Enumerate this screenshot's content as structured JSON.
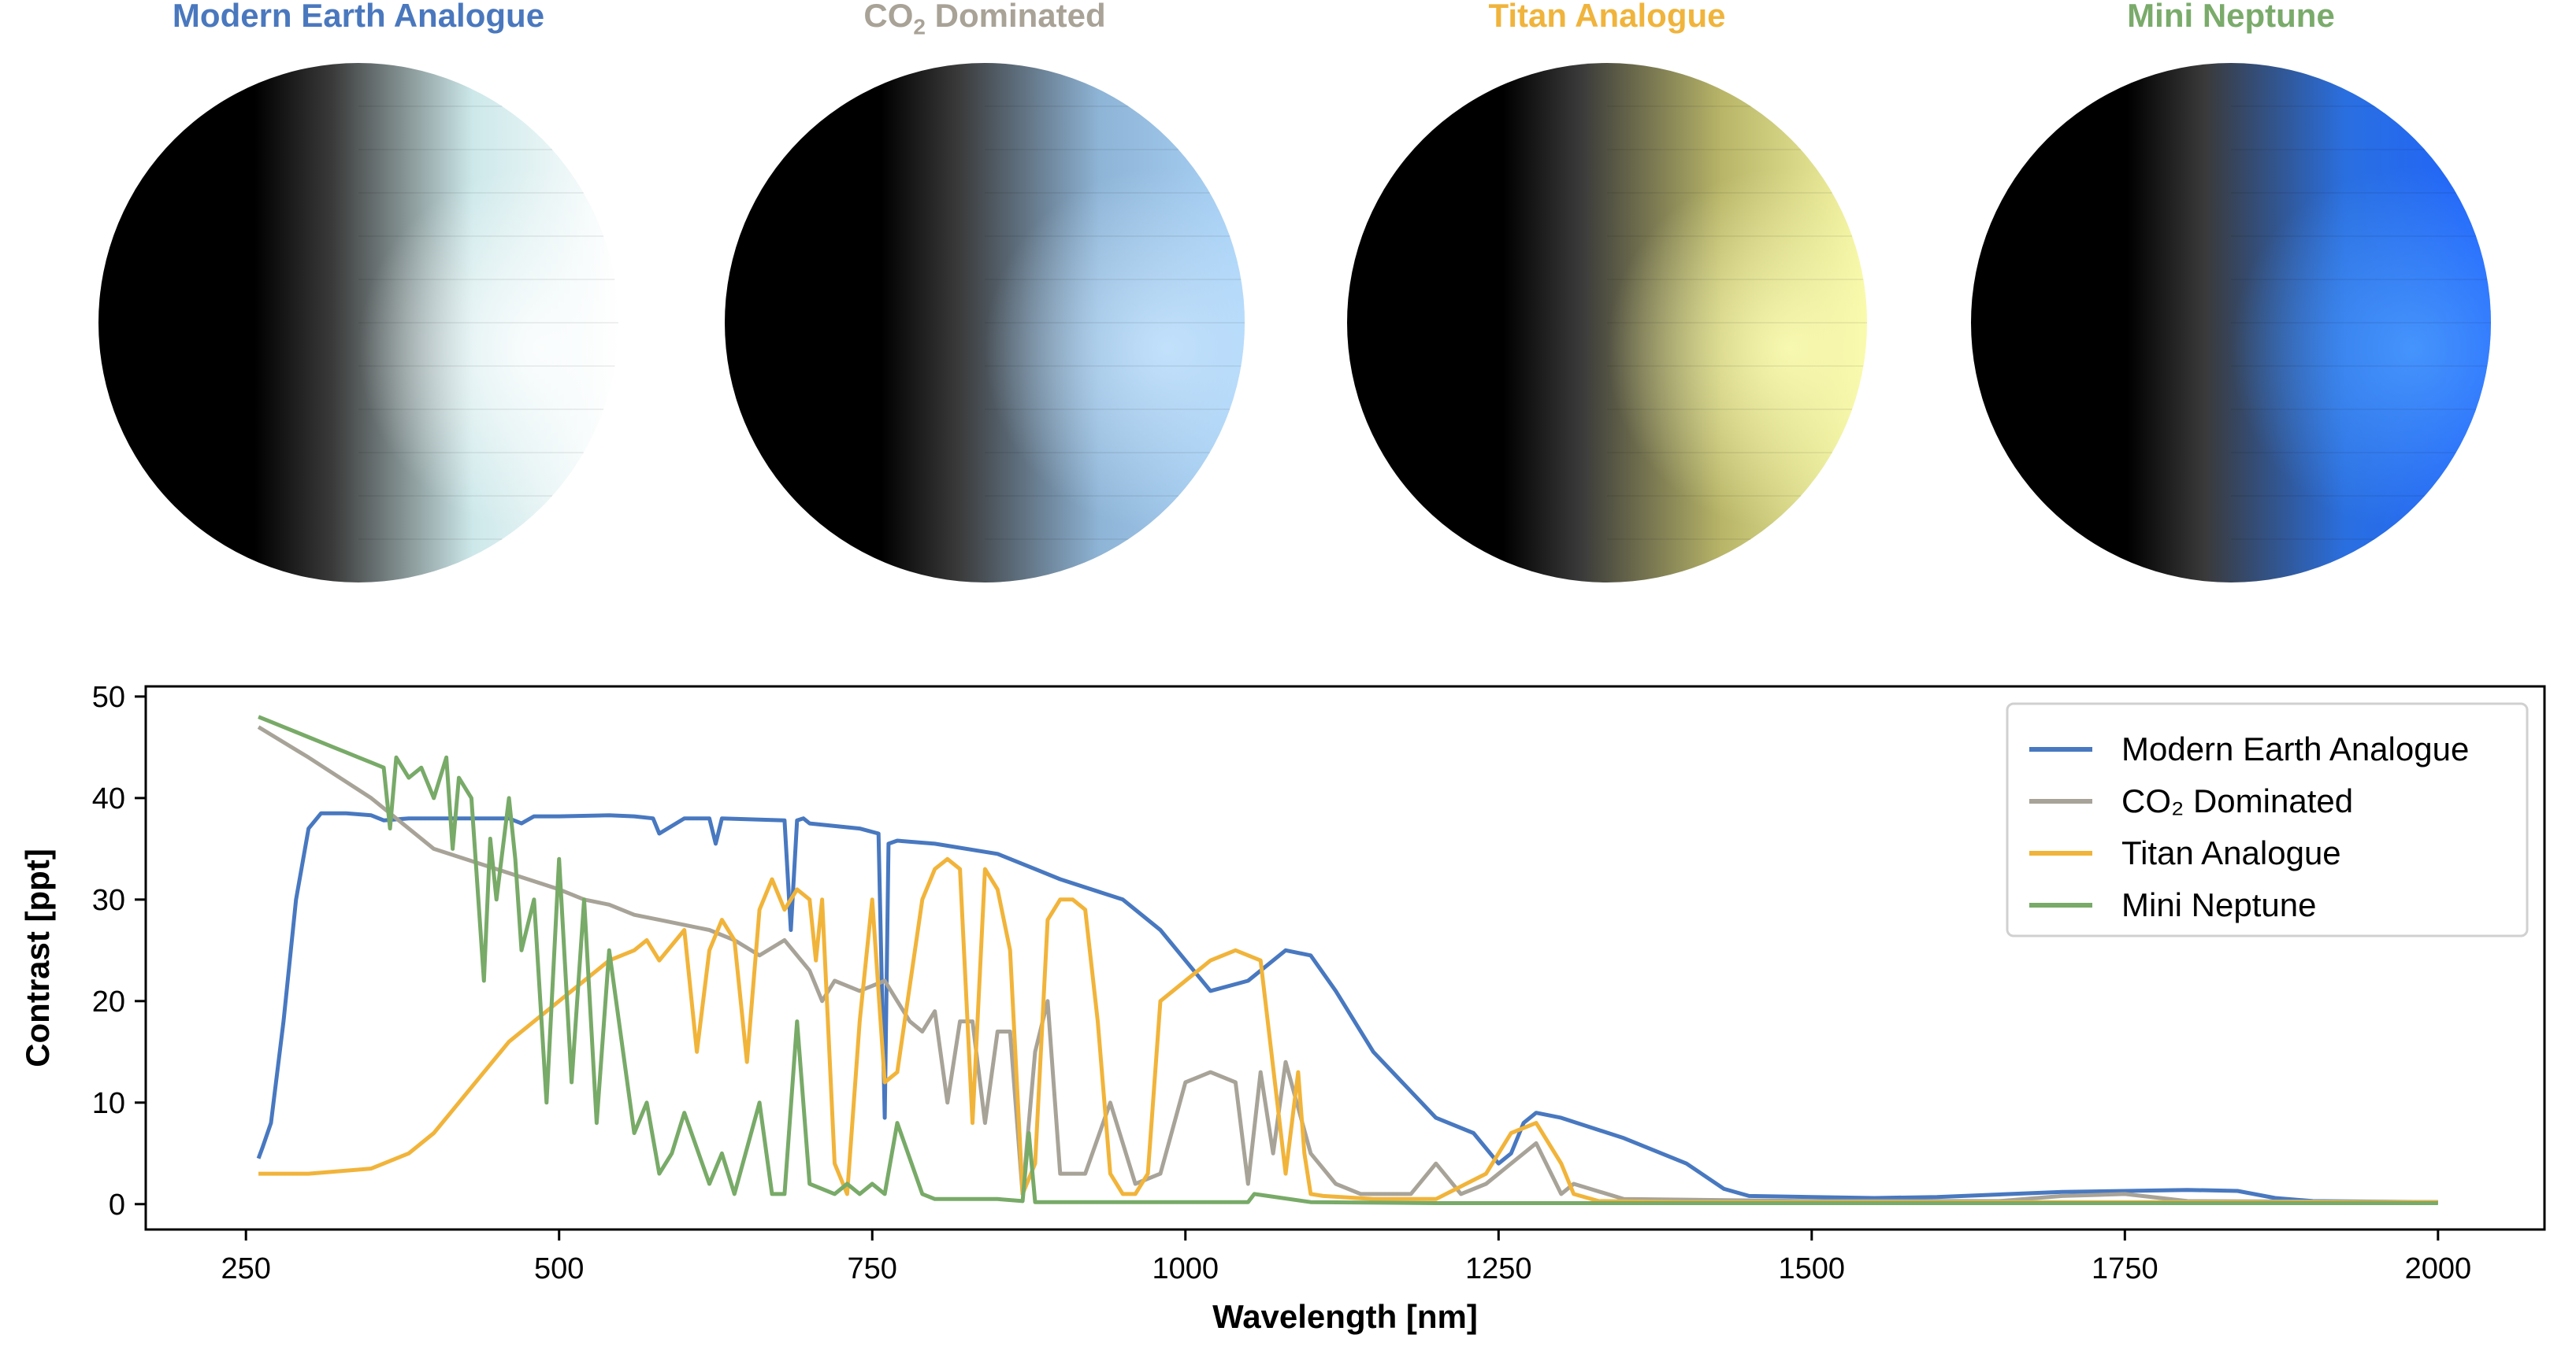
{
  "planets": [
    {
      "title_main": "Modern Earth Analogue",
      "title_sub": "",
      "title_after": "",
      "title_color": "#4a78be",
      "lit_color": "#ffffff",
      "tint_color": "#cde8ea",
      "glow_color": "#ffffff"
    },
    {
      "title_main": "CO",
      "title_sub": "2",
      "title_after": " Dominated",
      "title_color": "#a8a297",
      "lit_color": "#a9d3f8",
      "tint_color": "#8eb4d6",
      "glow_color": "#c9e6ff"
    },
    {
      "title_main": "Titan Analogue",
      "title_sub": "",
      "title_after": "",
      "title_color": "#f0b43c",
      "lit_color": "#f6f7a4",
      "tint_color": "#b8b568",
      "glow_color": "#feffb8"
    },
    {
      "title_main": "Mini Neptune",
      "title_sub": "",
      "title_after": "",
      "title_color": "#7aab6b",
      "lit_color": "#1f63ff",
      "tint_color": "#2a6fe0",
      "glow_color": "#4b9bff"
    }
  ],
  "chart_data": {
    "type": "line",
    "xlabel": "Wavelength [nm]",
    "ylabel": "Contrast [ppt]",
    "xlim": [
      170,
      2085
    ],
    "ylim": [
      -2.5,
      51
    ],
    "xticks": [
      250,
      500,
      750,
      1000,
      1250,
      1500,
      1750,
      2000
    ],
    "yticks": [
      0,
      10,
      20,
      30,
      40,
      50
    ],
    "legend_position": "top-right",
    "series": [
      {
        "name": "Modern Earth Analogue",
        "color": "#4878c0",
        "x": [
          260,
          263,
          270,
          280,
          290,
          300,
          310,
          330,
          350,
          360,
          380,
          400,
          420,
          460,
          470,
          480,
          500,
          540,
          560,
          575,
          580,
          600,
          620,
          625,
          630,
          680,
          685,
          690,
          695,
          700,
          740,
          755,
          760,
          763,
          770,
          800,
          850,
          880,
          900,
          950,
          980,
          1000,
          1020,
          1050,
          1080,
          1100,
          1120,
          1150,
          1200,
          1230,
          1250,
          1260,
          1270,
          1280,
          1300,
          1350,
          1400,
          1430,
          1450,
          1500,
          1550,
          1600,
          1700,
          1800,
          1840,
          1870,
          1900,
          2000
        ],
        "y": [
          4.5,
          5.5,
          8,
          18,
          30,
          37,
          38.5,
          38.5,
          38.3,
          37.8,
          38,
          38,
          38,
          38,
          37.5,
          38.2,
          38.2,
          38.3,
          38.2,
          38,
          36.5,
          38,
          38,
          35.5,
          38,
          37.8,
          27,
          37.8,
          38,
          37.5,
          37,
          36.5,
          8.5,
          35.5,
          35.8,
          35.5,
          34.5,
          33,
          32,
          30,
          27,
          24,
          21,
          22,
          25,
          24.5,
          21,
          15,
          8.5,
          7,
          4,
          5,
          8,
          9,
          8.5,
          6.5,
          4,
          1.5,
          0.8,
          0.7,
          0.6,
          0.7,
          1.2,
          1.4,
          1.3,
          0.6,
          0.3,
          0.2
        ]
      },
      {
        "name": "CO₂ Dominated",
        "color": "#a8a398",
        "x": [
          260,
          300,
          350,
          400,
          450,
          500,
          520,
          540,
          560,
          580,
          600,
          620,
          640,
          660,
          680,
          700,
          710,
          720,
          740,
          760,
          780,
          790,
          800,
          810,
          820,
          830,
          840,
          850,
          860,
          870,
          880,
          890,
          900,
          920,
          940,
          960,
          980,
          1000,
          1020,
          1040,
          1050,
          1060,
          1070,
          1080,
          1100,
          1120,
          1140,
          1160,
          1180,
          1200,
          1220,
          1240,
          1260,
          1280,
          1300,
          1310,
          1350,
          1500,
          1650,
          1700,
          1750,
          1800,
          2000
        ],
        "y": [
          47,
          44,
          40,
          35,
          33,
          31,
          30,
          29.5,
          28.5,
          28,
          27.5,
          27,
          26,
          24.5,
          26,
          23,
          20,
          22,
          21,
          22,
          18,
          17,
          19,
          10,
          18,
          18,
          8,
          17,
          17,
          1,
          15,
          20,
          3,
          3,
          10,
          2,
          3,
          12,
          13,
          12,
          2,
          13,
          5,
          14,
          5,
          2,
          1,
          1,
          1,
          4,
          1,
          2,
          4,
          6,
          1,
          2,
          0.5,
          0.3,
          0.3,
          0.8,
          1,
          0.3,
          0.2
        ]
      },
      {
        "name": "Titan Analogue",
        "color": "#f1b43a",
        "x": [
          260,
          300,
          350,
          380,
          400,
          420,
          440,
          460,
          480,
          500,
          520,
          540,
          560,
          570,
          580,
          600,
          610,
          620,
          630,
          640,
          650,
          660,
          670,
          680,
          690,
          700,
          705,
          710,
          720,
          730,
          740,
          750,
          760,
          770,
          790,
          800,
          810,
          820,
          830,
          840,
          850,
          860,
          870,
          880,
          890,
          900,
          910,
          920,
          930,
          940,
          950,
          960,
          970,
          980,
          1000,
          1020,
          1040,
          1060,
          1080,
          1090,
          1095,
          1100,
          1110,
          1150,
          1200,
          1240,
          1260,
          1280,
          1300,
          1310,
          1330,
          1400,
          1500,
          1600,
          1800,
          2000
        ],
        "y": [
          3,
          3,
          3.5,
          5,
          7,
          10,
          13,
          16,
          18,
          20,
          22,
          24,
          25,
          26,
          24,
          27,
          15,
          25,
          28,
          26,
          14,
          29,
          32,
          29,
          31,
          30,
          24,
          30,
          4,
          1,
          18,
          30,
          12,
          13,
          30,
          33,
          34,
          33,
          8,
          33,
          31,
          25,
          1,
          4,
          28,
          30,
          30,
          29,
          18,
          3,
          1,
          1,
          3,
          20,
          22,
          24,
          25,
          24,
          3,
          13,
          5,
          1,
          0.8,
          0.5,
          0.5,
          3,
          7,
          8,
          4,
          1,
          0.3,
          0.2,
          0.2,
          0.2,
          0.2,
          0.2
        ]
      },
      {
        "name": "Mini Neptune",
        "color": "#78aa68",
        "x": [
          260,
          270,
          280,
          290,
          300,
          310,
          320,
          330,
          340,
          350,
          360,
          365,
          370,
          380,
          390,
          400,
          410,
          415,
          420,
          430,
          440,
          445,
          450,
          460,
          465,
          470,
          480,
          490,
          500,
          510,
          520,
          530,
          540,
          560,
          570,
          580,
          590,
          600,
          620,
          630,
          640,
          660,
          670,
          680,
          690,
          700,
          720,
          730,
          740,
          750,
          760,
          770,
          790,
          800,
          850,
          870,
          875,
          880,
          900,
          950,
          1000,
          1050,
          1055,
          1100,
          1200,
          1500,
          2000
        ],
        "y": [
          48,
          47.5,
          47,
          46.5,
          46,
          45.5,
          45,
          44.5,
          44,
          43.5,
          43,
          37,
          44,
          42,
          43,
          40,
          44,
          35,
          42,
          40,
          22,
          36,
          30,
          40,
          34,
          25,
          30,
          10,
          34,
          12,
          30,
          8,
          25,
          7,
          10,
          3,
          5,
          9,
          2,
          5,
          1,
          10,
          1,
          1,
          18,
          2,
          1,
          2,
          1,
          2,
          1,
          8,
          1,
          0.5,
          0.5,
          0.3,
          7,
          0.2,
          0.2,
          0.2,
          0.2,
          0.2,
          1,
          0.2,
          0.1,
          0.1,
          0.1
        ]
      }
    ]
  }
}
